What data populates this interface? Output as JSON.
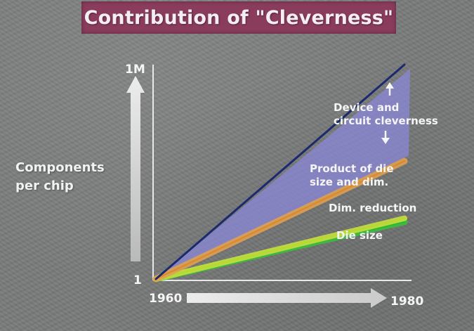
{
  "slide": {
    "title": "Contribution of \"Cleverness\"",
    "colors": {
      "background": "#7a7b7b",
      "title_bar": "#8a3c5c",
      "text": "#f5f5f5"
    }
  },
  "chart_data": {
    "type": "line",
    "title": "Contribution of \"Cleverness\"",
    "ylabel_lines": [
      "Components",
      "per chip"
    ],
    "xlabel": "",
    "x_ticks": [
      "1960",
      "1980"
    ],
    "y_ticks": [
      "1",
      "1M"
    ],
    "x": [
      1960,
      1980
    ],
    "ylim": [
      1,
      1000000
    ],
    "yscale": "log",
    "grid": false,
    "series": [
      {
        "name": "Device and circuit cleverness",
        "values": [
          1,
          1000000
        ],
        "color": "#1b2a6e",
        "band_color": "#8a88d8"
      },
      {
        "name": "Product of die size and dim.",
        "values": [
          1,
          2000
        ],
        "color": "#d98a2a",
        "band_color": "#e0a050"
      },
      {
        "name": "Dim. reduction",
        "values": [
          1,
          50
        ],
        "color": "#b8d830",
        "band_color": "#c6e040"
      },
      {
        "name": "Die size",
        "values": [
          1,
          40
        ],
        "color": "#2fb52f",
        "band_color": "#3ac03a"
      }
    ],
    "annotations": [
      {
        "text_lines": [
          "Device and",
          "circuit cleverness"
        ]
      },
      {
        "text_lines": [
          "Product of die",
          "size and dim."
        ]
      },
      {
        "text_lines": [
          "Dim. reduction"
        ]
      },
      {
        "text_lines": [
          "Die size"
        ]
      }
    ]
  }
}
